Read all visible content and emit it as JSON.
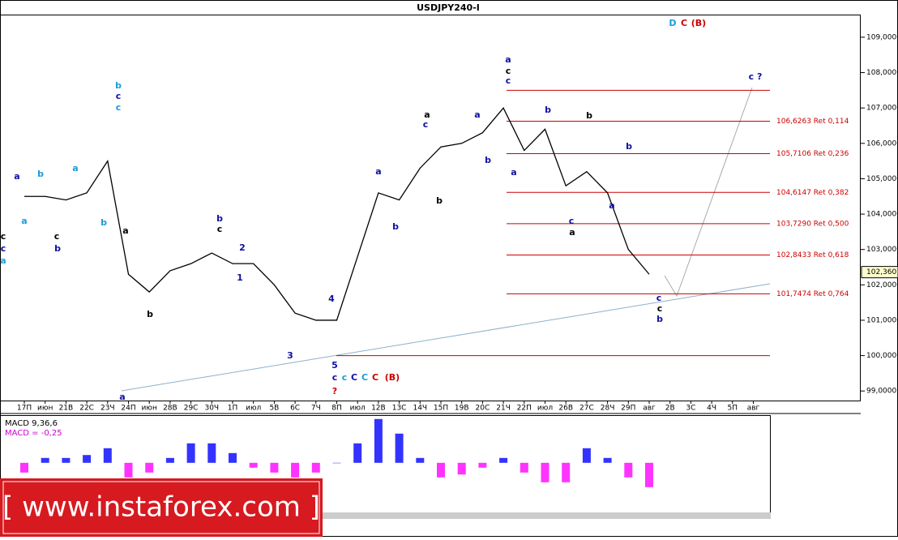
{
  "chart_data": [
    {
      "type": "line",
      "title": "USDJPY240-I",
      "color": "#000000",
      "categories": [
        "17П",
        "июн",
        "21В",
        "22С",
        "23Ч",
        "24П",
        "июн",
        "28В",
        "29С",
        "30Ч",
        "1П",
        "июл",
        "5В",
        "6С",
        "7Ч",
        "8П",
        "июл",
        "12В",
        "13С",
        "14Ч",
        "15П",
        "19В",
        "20С",
        "21Ч",
        "22П",
        "июл",
        "26В",
        "27С",
        "28Ч",
        "29П",
        "авг",
        "2В",
        "3С",
        "4Ч",
        "5П",
        "авг"
      ],
      "values": [
        104.5,
        104.5,
        104.4,
        104.6,
        105.5,
        102.3,
        101.8,
        102.4,
        102.6,
        102.9,
        102.6,
        102.6,
        102.0,
        101.2,
        101.0,
        101.0,
        102.8,
        104.6,
        104.4,
        105.3,
        105.9,
        106.0,
        106.3,
        107.0,
        105.8,
        106.4,
        104.8,
        105.2,
        104.6,
        103.0,
        102.3,
        null,
        null,
        null,
        null,
        null
      ],
      "ylim": [
        98.73,
        109.64
      ],
      "yticks": [
        {
          "value": 99,
          "label": "99,0000"
        },
        {
          "value": 100,
          "label": "100,0000"
        },
        {
          "value": 101,
          "label": "101,0000"
        },
        {
          "value": 102,
          "label": "102,0000"
        },
        {
          "value": 103,
          "label": "103,0000"
        },
        {
          "value": 104,
          "label": "104,0000"
        },
        {
          "value": 105,
          "label": "105,0000"
        },
        {
          "value": 106,
          "label": "106,0000"
        },
        {
          "value": 107,
          "label": "107,0000"
        },
        {
          "value": 108,
          "label": "108,0000"
        },
        {
          "value": 109,
          "label": "109,0000"
        }
      ],
      "level_color": "#cc0000",
      "levels": [
        107.5,
        100.0
      ],
      "retracements": [
        {
          "value": 106.6263,
          "label": "106,6263 Ret 0,114"
        },
        {
          "value": 105.7106,
          "label": "105,7106 Ret 0,236"
        },
        {
          "value": 104.6147,
          "label": "104,6147 Ret 0,382"
        },
        {
          "value": 103.729,
          "label": "103,7290 Ret 0,500"
        },
        {
          "value": 102.8433,
          "label": "102,8433 Ret 0,618"
        },
        {
          "value": 101.7474,
          "label": "101,7474 Ret 0,764"
        }
      ],
      "last_price": {
        "value": 102.36,
        "label": "102,360"
      },
      "annotations": [
        {
          "text": "D",
          "color": "#1a9cd8"
        },
        {
          "text": "C",
          "color": "#cc0000"
        },
        {
          "text": "(B)",
          "color": "#cc0000"
        },
        {
          "text": "c",
          "color": "#000000"
        },
        {
          "text": "c",
          "color": "#1010a0"
        },
        {
          "text": "a",
          "color": "#1a9cd8"
        },
        {
          "text": "a",
          "color": "#1010a0"
        },
        {
          "text": "a",
          "color": "#1a9cd8"
        },
        {
          "text": "b",
          "color": "#1a9cd8"
        },
        {
          "text": "c",
          "color": "#000000"
        },
        {
          "text": "b",
          "color": "#1010a0"
        },
        {
          "text": "a",
          "color": "#1a9cd8"
        },
        {
          "text": "b",
          "color": "#1a9cd8"
        },
        {
          "text": "b",
          "color": "#1a9cd8"
        },
        {
          "text": "c",
          "color": "#1010a0"
        },
        {
          "text": "c",
          "color": "#1a9cd8"
        },
        {
          "text": "a",
          "color": "#000000"
        },
        {
          "text": "b",
          "color": "#000000"
        },
        {
          "text": "a",
          "color": "#1010a0"
        },
        {
          "text": "b",
          "color": "#1010a0"
        },
        {
          "text": "c",
          "color": "#000000"
        },
        {
          "text": "2",
          "color": "#1010a0"
        },
        {
          "text": "1",
          "color": "#1010a0"
        },
        {
          "text": "3",
          "color": "#1010a0"
        },
        {
          "text": "4",
          "color": "#1010a0"
        },
        {
          "text": "5",
          "color": "#1010a0"
        },
        {
          "text": "c",
          "color": "#1010a0"
        },
        {
          "text": "c",
          "color": "#1a9cd8"
        },
        {
          "text": "C",
          "color": "#1010a0"
        },
        {
          "text": "C",
          "color": "#1a9cd8"
        },
        {
          "text": "C",
          "color": "#cc0000"
        },
        {
          "text": "(B)",
          "color": "#cc0000"
        },
        {
          "text": "?",
          "color": "#cc0000"
        },
        {
          "text": "a",
          "color": "#1010a0"
        },
        {
          "text": "b",
          "color": "#1010a0"
        },
        {
          "text": "a",
          "color": "#000000"
        },
        {
          "text": "c",
          "color": "#1010a0"
        },
        {
          "text": "b",
          "color": "#000000"
        },
        {
          "text": "a",
          "color": "#1010a0"
        },
        {
          "text": "b",
          "color": "#1010a0"
        },
        {
          "text": "a",
          "color": "#1010a0"
        },
        {
          "text": "c",
          "color": "#000000"
        },
        {
          "text": "c",
          "color": "#1010a0"
        },
        {
          "text": "a",
          "color": "#1010a0"
        },
        {
          "text": "b",
          "color": "#1010a0"
        },
        {
          "text": "b",
          "color": "#000000"
        },
        {
          "text": "c",
          "color": "#1010a0"
        },
        {
          "text": "a",
          "color": "#000000"
        },
        {
          "text": "a",
          "color": "#1010a0"
        },
        {
          "text": "b",
          "color": "#1010a0"
        },
        {
          "text": "c",
          "color": "#1010a0"
        },
        {
          "text": "c",
          "color": "#000000"
        },
        {
          "text": "b",
          "color": "#1010a0"
        },
        {
          "text": "c ?",
          "color": "#1010a0"
        }
      ]
    },
    {
      "type": "bar",
      "title": "MACD 9,36,6",
      "subtitle": "MACD = -0,25",
      "positive_color": "#0000ff",
      "negative_color": "#ff00ff",
      "values": [
        -0.1,
        0.05,
        0.05,
        0.08,
        0.15,
        -0.15,
        -0.1,
        0.05,
        0.2,
        0.2,
        0.1,
        -0.05,
        -0.1,
        -0.15,
        -0.1,
        0.0,
        0.2,
        0.45,
        0.3,
        0.05,
        -0.15,
        -0.12,
        -0.05,
        0.05,
        -0.1,
        -0.2,
        -0.2,
        0.15,
        0.05,
        -0.15,
        -0.25
      ],
      "ylim": [
        -0.51,
        0.49
      ]
    }
  ],
  "watermark": "[ www.instaforex.com ]"
}
